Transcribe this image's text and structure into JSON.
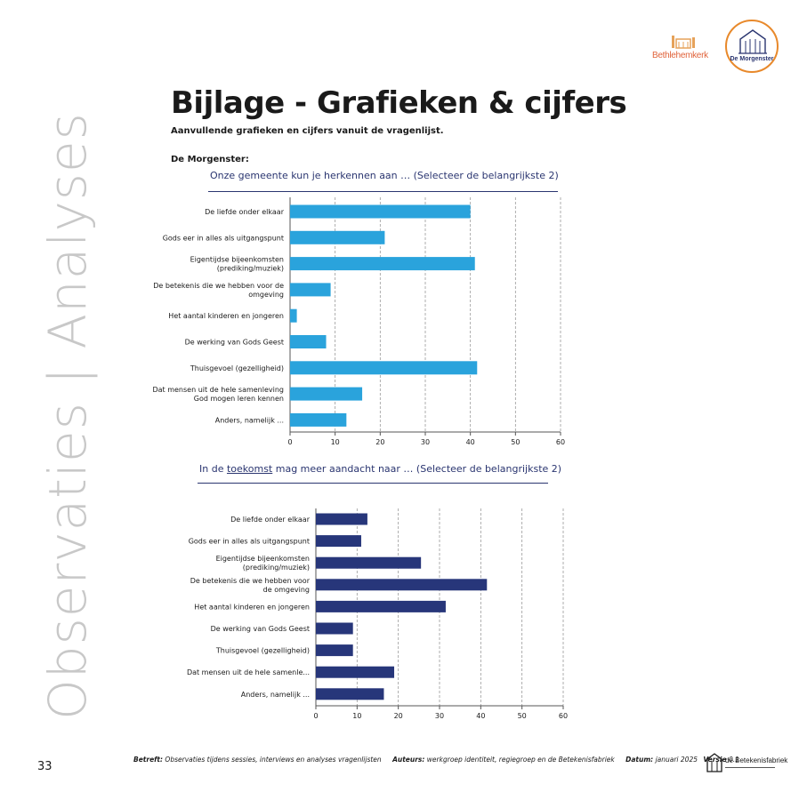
{
  "side_title": "Observaties | Analyses",
  "logos": {
    "left": "Bethlehemkerk",
    "right": "De Morgenster",
    "footer": "de Betekenisfabriek"
  },
  "page": {
    "title": "Bijlage - Grafieken & cijfers",
    "subtitle": "Aanvullende grafieken en cijfers vanuit de vragenlijst.",
    "section": "De Morgenster:",
    "page_number": "33"
  },
  "chart_titles": [
    {
      "before": "Onze gemeente kun je herkennen aan … (Selecteer de belangrijkste 2)",
      "underlined": "",
      "after": ""
    },
    {
      "before": "In de ",
      "underlined": "toekomst",
      "after": " mag meer aandacht naar … (Selecteer de belangrijkste 2)"
    }
  ],
  "footer": {
    "betreft_label": "Betreft:",
    "betreft": "Observaties tijdens sessies, interviews en analyses vragenlijsten",
    "auteurs_label": "Auteurs:",
    "auteurs": "werkgroep identiteit, regiegroep en de Betekenisfabriek",
    "datum_label": "Datum:",
    "datum": "januari 2025",
    "versie_label": "Versie",
    "versie": "0.1"
  },
  "colors": {
    "chart1_bar": "#2aa3dc",
    "chart2_bar": "#27367a",
    "title_color": "#2a3570"
  },
  "chart_data": [
    {
      "type": "bar",
      "orientation": "horizontal",
      "title": "Onze gemeente kun je herkennen aan … (Selecteer de belangrijkste 2)",
      "categories": [
        [
          "De liefde onder elkaar"
        ],
        [
          "Gods eer in alles als uitgangspunt"
        ],
        [
          "Eigentijdse bijeenkomsten",
          "(prediking/muziek)"
        ],
        [
          "De betekenis die we hebben voor de",
          "omgeving"
        ],
        [
          "Het aantal kinderen en jongeren"
        ],
        [
          "De werking van Gods Geest"
        ],
        [
          "Thuisgevoel (gezelligheid)"
        ],
        [
          "Dat mensen uit de hele samenleving",
          "God mogen leren kennen"
        ],
        [
          "Anders, namelijk ..."
        ]
      ],
      "values": [
        40,
        21,
        41,
        9,
        1.5,
        8,
        41.5,
        16,
        12.5
      ],
      "xlim": [
        0,
        60
      ],
      "xticks": [
        0,
        10,
        20,
        30,
        40,
        50,
        60
      ],
      "grid": "vertical dashed",
      "color": "#2aa3dc"
    },
    {
      "type": "bar",
      "orientation": "horizontal",
      "title": "In de toekomst mag meer aandacht naar … (Selecteer de belangrijkste 2)",
      "categories": [
        [
          "De liefde onder elkaar"
        ],
        [
          "Gods eer in alles als uitgangspunt"
        ],
        [
          "Eigentijdse bijeenkomsten",
          "(prediking/muziek)"
        ],
        [
          "De betekenis die we hebben voor",
          "de omgeving"
        ],
        [
          "Het aantal kinderen en jongeren"
        ],
        [
          "De werking van Gods Geest"
        ],
        [
          "Thuisgevoel (gezelligheid)"
        ],
        [
          "Dat mensen uit de hele samenle..."
        ],
        [
          "Anders, namelijk ..."
        ]
      ],
      "values": [
        12.5,
        11,
        25.5,
        41.5,
        31.5,
        9,
        9,
        19,
        16.5
      ],
      "xlim": [
        0,
        60
      ],
      "xticks": [
        0,
        10,
        20,
        30,
        40,
        50,
        60
      ],
      "grid": "vertical dashed",
      "color": "#27367a"
    }
  ]
}
